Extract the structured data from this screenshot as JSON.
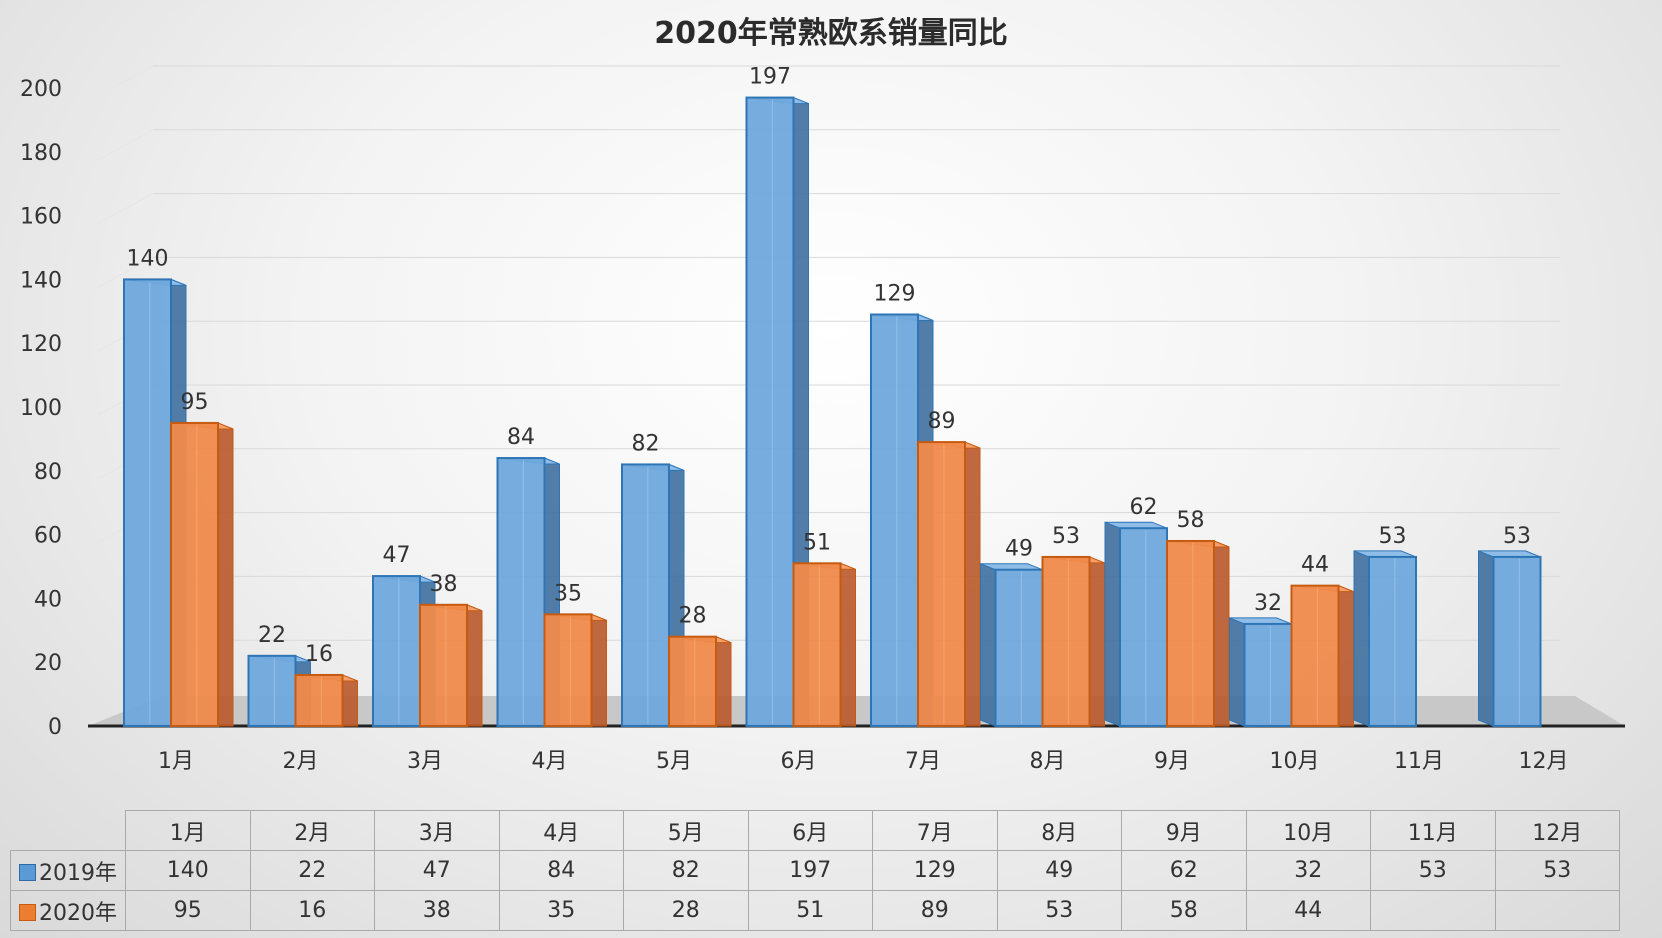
{
  "chart_data": {
    "type": "bar",
    "title": "2020年常熟欧系销量同比",
    "categories": [
      "1月",
      "2月",
      "3月",
      "4月",
      "5月",
      "6月",
      "7月",
      "8月",
      "9月",
      "10月",
      "11月",
      "12月"
    ],
    "series": [
      {
        "name": "2019年",
        "color": "#5b9bd5",
        "values": [
          140,
          22,
          47,
          84,
          82,
          197,
          129,
          49,
          62,
          32,
          53,
          53
        ]
      },
      {
        "name": "2020年",
        "color": "#ed7d31",
        "values": [
          95,
          16,
          38,
          35,
          28,
          51,
          89,
          53,
          58,
          44,
          null,
          null
        ]
      }
    ],
    "yticks": [
      0,
      20,
      40,
      60,
      80,
      100,
      120,
      140,
      160,
      180,
      200
    ],
    "ylim": [
      0,
      200
    ],
    "grid": true,
    "style": "3d-clustered-column",
    "data_labels": true,
    "legend": "data-table-below"
  }
}
